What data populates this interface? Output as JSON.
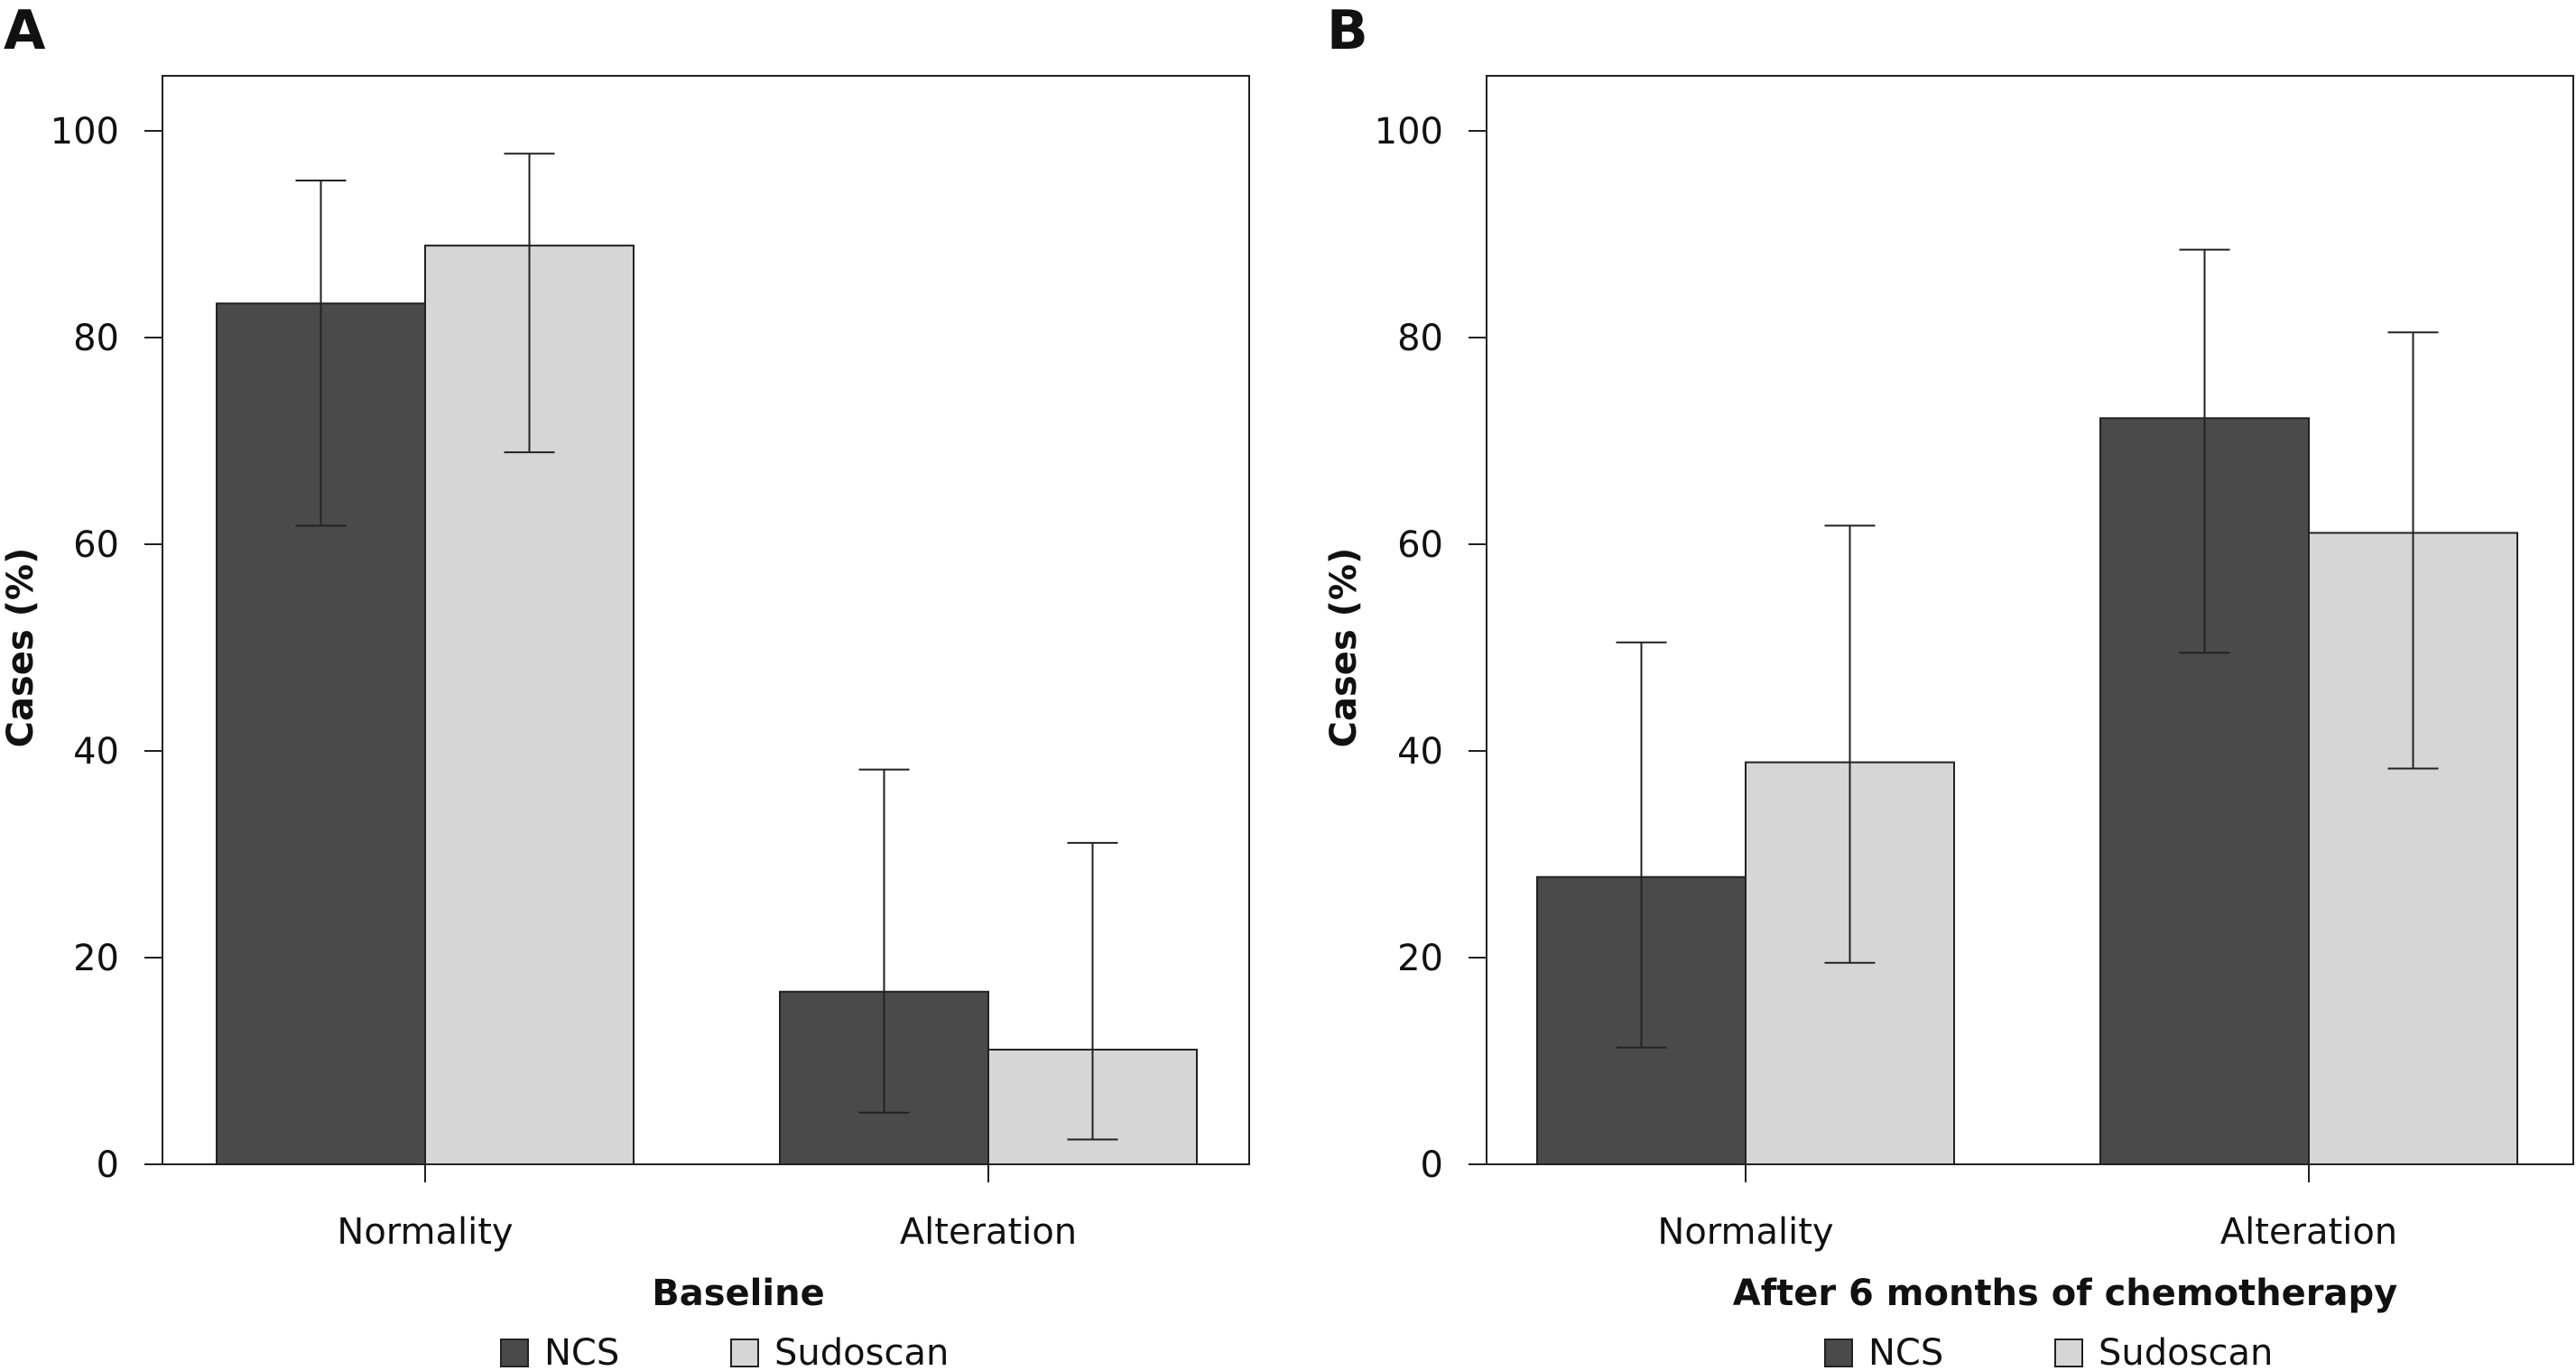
{
  "chart_data": [
    {
      "panel_label": "A",
      "type": "bar",
      "categories": [
        "Normality",
        "Alteration"
      ],
      "series": [
        {
          "name": "NCS",
          "color": "#4a4a4a",
          "values": [
            83.3,
            16.7
          ],
          "error_low": [
            61.8,
            5.0
          ],
          "error_high": [
            95.2,
            38.2
          ]
        },
        {
          "name": "Sudoscan",
          "color": "#d6d6d6",
          "values": [
            88.9,
            11.1
          ],
          "error_low": [
            68.9,
            2.4
          ],
          "error_high": [
            97.8,
            31.1
          ]
        }
      ],
      "ylabel": "Cases (%)",
      "xlabel": "Baseline",
      "ylim": [
        0,
        100
      ],
      "yticks": [
        "0",
        "20",
        "40",
        "60",
        "80",
        "100"
      ],
      "legend": [
        "NCS",
        "Sudoscan"
      ],
      "legend_position": "bottom"
    },
    {
      "panel_label": "B",
      "type": "bar",
      "categories": [
        "Normality",
        "Alteration"
      ],
      "series": [
        {
          "name": "NCS",
          "color": "#4a4a4a",
          "values": [
            27.8,
            72.2
          ],
          "error_low": [
            11.3,
            49.5
          ],
          "error_high": [
            50.5,
            88.5
          ]
        },
        {
          "name": "Sudoscan",
          "color": "#d6d6d6",
          "values": [
            38.9,
            61.1
          ],
          "error_low": [
            19.5,
            38.3
          ],
          "error_high": [
            61.8,
            80.5
          ]
        }
      ],
      "ylabel": "Cases (%)",
      "xlabel": "After 6 months of chemotherapy",
      "ylim": [
        0,
        100
      ],
      "yticks": [
        "0",
        "20",
        "40",
        "60",
        "80",
        "100"
      ],
      "legend": [
        "NCS",
        "Sudoscan"
      ],
      "legend_position": "bottom"
    }
  ]
}
